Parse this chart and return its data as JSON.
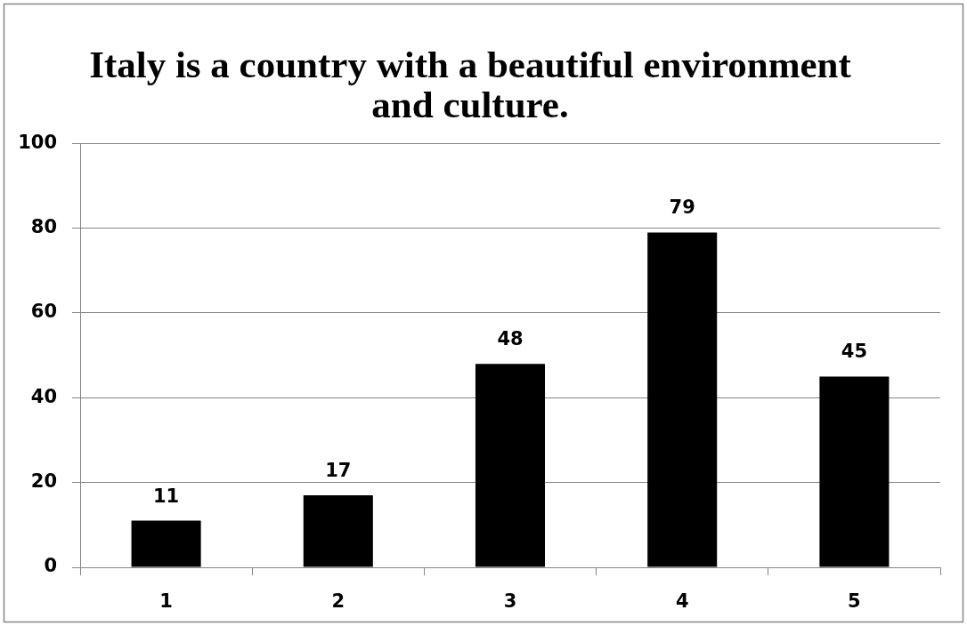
{
  "chart_data": {
    "type": "bar",
    "title": "Italy is a country with a beautiful environment and culture.",
    "categories": [
      "1",
      "2",
      "3",
      "4",
      "5"
    ],
    "values": [
      11,
      17,
      48,
      79,
      45
    ],
    "color": "#000000",
    "ylim": [
      0,
      100
    ],
    "yticks": [
      0,
      20,
      40,
      60,
      80,
      100
    ],
    "grid": "y",
    "data_labels": true
  }
}
